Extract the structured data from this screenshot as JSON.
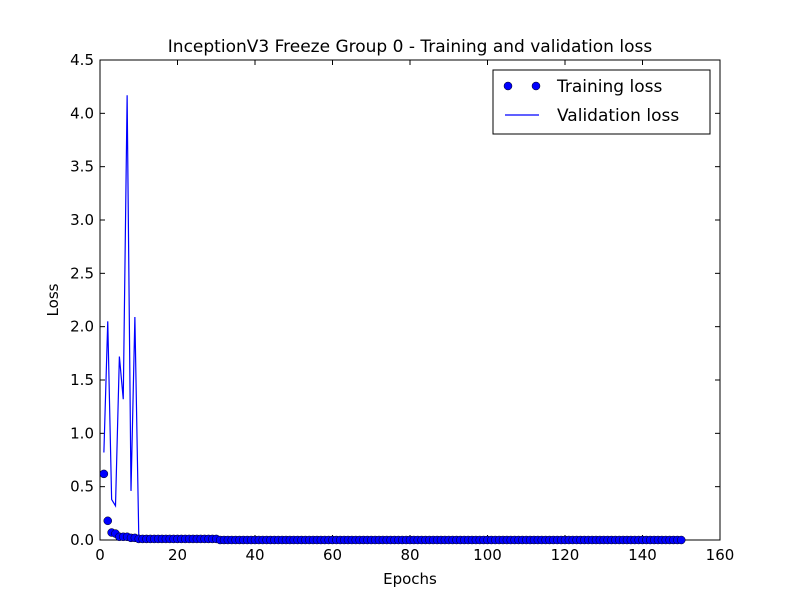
{
  "chart_data": {
    "type": "line",
    "title": "InceptionV3 Freeze Group 0 - Training and validation loss",
    "xlabel": "Epochs",
    "ylabel": "Loss",
    "xlim": [
      0,
      160
    ],
    "ylim": [
      0.0,
      4.5
    ],
    "xticks": [
      "0",
      "20",
      "40",
      "60",
      "80",
      "100",
      "120",
      "140",
      "160"
    ],
    "yticks": [
      "0.0",
      "0.5",
      "1.0",
      "1.5",
      "2.0",
      "2.5",
      "3.0",
      "3.5",
      "4.0",
      "4.5"
    ],
    "grid": false,
    "legend_position": "top-right",
    "series": [
      {
        "name": "Training loss",
        "style": "markers",
        "color": "#0000ff",
        "x": [
          1,
          2,
          3,
          4,
          5,
          6,
          7,
          8,
          9,
          10,
          11,
          12,
          13,
          14,
          15,
          16,
          17,
          18,
          19,
          20,
          21,
          22,
          23,
          24,
          25,
          26,
          27,
          28,
          29,
          30,
          31,
          32,
          33,
          34,
          35,
          36,
          37,
          38,
          39,
          40,
          41,
          42,
          43,
          44,
          45,
          46,
          47,
          48,
          49,
          50,
          51,
          52,
          53,
          54,
          55,
          56,
          57,
          58,
          59,
          60,
          61,
          62,
          63,
          64,
          65,
          66,
          67,
          68,
          69,
          70,
          71,
          72,
          73,
          74,
          75,
          76,
          77,
          78,
          79,
          80,
          81,
          82,
          83,
          84,
          85,
          86,
          87,
          88,
          89,
          90,
          91,
          92,
          93,
          94,
          95,
          96,
          97,
          98,
          99,
          100,
          101,
          102,
          103,
          104,
          105,
          106,
          107,
          108,
          109,
          110,
          111,
          112,
          113,
          114,
          115,
          116,
          117,
          118,
          119,
          120,
          121,
          122,
          123,
          124,
          125,
          126,
          127,
          128,
          129,
          130,
          131,
          132,
          133,
          134,
          135,
          136,
          137,
          138,
          139,
          140,
          141,
          142,
          143,
          144,
          145,
          146,
          147,
          148,
          149,
          150
        ],
        "y": [
          0.62,
          0.18,
          0.07,
          0.06,
          0.03,
          0.03,
          0.03,
          0.02,
          0.02,
          0.01,
          0.01,
          0.01,
          0.01,
          0.01,
          0.01,
          0.01,
          0.01,
          0.01,
          0.01,
          0.01,
          0.01,
          0.01,
          0.01,
          0.01,
          0.01,
          0.01,
          0.01,
          0.01,
          0.01,
          0.01,
          0.0,
          0.0,
          0.0,
          0.0,
          0.0,
          0.0,
          0.0,
          0.0,
          0.0,
          0.0,
          0.0,
          0.0,
          0.0,
          0.0,
          0.0,
          0.0,
          0.0,
          0.0,
          0.0,
          0.0,
          0.0,
          0.0,
          0.0,
          0.0,
          0.0,
          0.0,
          0.0,
          0.0,
          0.0,
          0.0,
          0.0,
          0.0,
          0.0,
          0.0,
          0.0,
          0.0,
          0.0,
          0.0,
          0.0,
          0.0,
          0.0,
          0.0,
          0.0,
          0.0,
          0.0,
          0.0,
          0.0,
          0.0,
          0.0,
          0.0,
          0.0,
          0.0,
          0.0,
          0.0,
          0.0,
          0.0,
          0.0,
          0.0,
          0.0,
          0.0,
          0.0,
          0.0,
          0.0,
          0.0,
          0.0,
          0.0,
          0.0,
          0.0,
          0.0,
          0.0,
          0.0,
          0.0,
          0.0,
          0.0,
          0.0,
          0.0,
          0.0,
          0.0,
          0.0,
          0.0,
          0.0,
          0.0,
          0.0,
          0.0,
          0.0,
          0.0,
          0.0,
          0.0,
          0.0,
          0.0,
          0.0,
          0.0,
          0.0,
          0.0,
          0.0,
          0.0,
          0.0,
          0.0,
          0.0,
          0.0,
          0.0,
          0.0,
          0.0,
          0.0,
          0.0,
          0.0,
          0.0,
          0.0,
          0.0,
          0.0,
          0.0,
          0.0,
          0.0,
          0.0,
          0.0,
          0.0,
          0.0,
          0.0,
          0.0,
          0.0
        ]
      },
      {
        "name": "Validation loss",
        "style": "line",
        "color": "#0000ff",
        "x": [
          1,
          2,
          3,
          4,
          5,
          6,
          7,
          8,
          9,
          10,
          11,
          12,
          13,
          14,
          15,
          16,
          17,
          18,
          19,
          20,
          21,
          22,
          23,
          24,
          25,
          26,
          27,
          28,
          29,
          30,
          31,
          32,
          33,
          34,
          35,
          36,
          37,
          38,
          39,
          40,
          41,
          42,
          43,
          44,
          45,
          46,
          47,
          48,
          49,
          50,
          51,
          52,
          53,
          54,
          55,
          56,
          57,
          58,
          59,
          60,
          61,
          62,
          63,
          64,
          65,
          66,
          67,
          68,
          69,
          70,
          71,
          72,
          73,
          74,
          75,
          76,
          77,
          78,
          79,
          80,
          81,
          82,
          83,
          84,
          85,
          86,
          87,
          88,
          89,
          90,
          91,
          92,
          93,
          94,
          95,
          96,
          97,
          98,
          99,
          100,
          101,
          102,
          103,
          104,
          105,
          106,
          107,
          108,
          109,
          110,
          111,
          112,
          113,
          114,
          115,
          116,
          117,
          118,
          119,
          120,
          121,
          122,
          123,
          124,
          125,
          126,
          127,
          128,
          129,
          130,
          131,
          132,
          133,
          134,
          135,
          136,
          137,
          138,
          139,
          140,
          141,
          142,
          143,
          144,
          145,
          146,
          147,
          148,
          149,
          150
        ],
        "y": [
          0.82,
          2.05,
          0.38,
          0.32,
          1.72,
          1.32,
          4.17,
          0.46,
          2.09,
          0.05,
          0.02,
          0.02,
          0.02,
          0.02,
          0.02,
          0.02,
          0.02,
          0.02,
          0.02,
          0.02,
          0.02,
          0.02,
          0.02,
          0.02,
          0.02,
          0.02,
          0.02,
          0.02,
          0.02,
          0.02,
          0.02,
          0.02,
          0.02,
          0.02,
          0.02,
          0.02,
          0.02,
          0.02,
          0.02,
          0.02,
          0.02,
          0.02,
          0.02,
          0.02,
          0.02,
          0.02,
          0.02,
          0.02,
          0.02,
          0.02,
          0.02,
          0.02,
          0.02,
          0.02,
          0.02,
          0.02,
          0.02,
          0.02,
          0.02,
          0.02,
          0.02,
          0.02,
          0.02,
          0.02,
          0.02,
          0.02,
          0.02,
          0.02,
          0.02,
          0.02,
          0.02,
          0.02,
          0.02,
          0.02,
          0.02,
          0.02,
          0.02,
          0.02,
          0.02,
          0.02,
          0.02,
          0.02,
          0.02,
          0.02,
          0.02,
          0.02,
          0.02,
          0.02,
          0.02,
          0.02,
          0.02,
          0.02,
          0.02,
          0.02,
          0.02,
          0.02,
          0.02,
          0.02,
          0.02,
          0.02,
          0.02,
          0.02,
          0.02,
          0.02,
          0.02,
          0.02,
          0.02,
          0.02,
          0.02,
          0.02,
          0.02,
          0.02,
          0.02,
          0.02,
          0.02,
          0.02,
          0.02,
          0.02,
          0.02,
          0.02,
          0.02,
          0.02,
          0.02,
          0.02,
          0.02,
          0.02,
          0.02,
          0.02,
          0.02,
          0.02,
          0.02,
          0.02,
          0.02,
          0.02,
          0.02,
          0.02,
          0.02,
          0.02,
          0.02,
          0.02,
          0.02,
          0.02,
          0.02,
          0.02,
          0.02,
          0.02,
          0.02,
          0.02,
          0.02,
          0.02
        ]
      }
    ]
  }
}
